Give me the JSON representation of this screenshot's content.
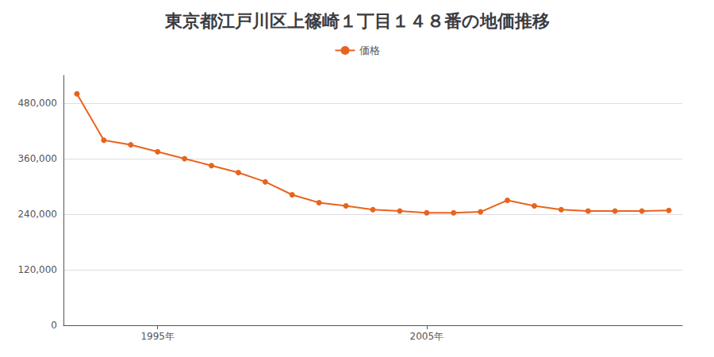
{
  "chart_data": {
    "type": "line",
    "title": "東京都江戸川区上篠崎１丁目１４８番の地価推移",
    "x": [
      1992,
      1993,
      1994,
      1995,
      1996,
      1997,
      1998,
      1999,
      2000,
      2001,
      2002,
      2003,
      2004,
      2005,
      2006,
      2007,
      2008,
      2009,
      2010,
      2011,
      2012,
      2013,
      2014
    ],
    "series": [
      {
        "name": "価格",
        "color": "#e8641e",
        "marker": "circle",
        "values": [
          500000,
          400000,
          390000,
          375000,
          360000,
          345000,
          330000,
          310000,
          282000,
          265000,
          258000,
          250000,
          247000,
          243000,
          243000,
          245000,
          270000,
          258000,
          250000,
          247000,
          247000,
          247000,
          248000
        ]
      }
    ],
    "xlim": [
      1991.5,
      2014.5
    ],
    "xticks": [
      {
        "value": 1995,
        "label": "1995年"
      },
      {
        "value": 2005,
        "label": "2005年"
      }
    ],
    "ylim": [
      0,
      540000
    ],
    "yticks": [
      0,
      {
        "value": 120000,
        "label": "120,000"
      },
      {
        "value": 240000,
        "label": "240,000"
      },
      {
        "value": 360000,
        "label": "360,000"
      },
      {
        "value": 480000,
        "label": "480,000"
      }
    ],
    "grid": true,
    "legend": "top"
  }
}
